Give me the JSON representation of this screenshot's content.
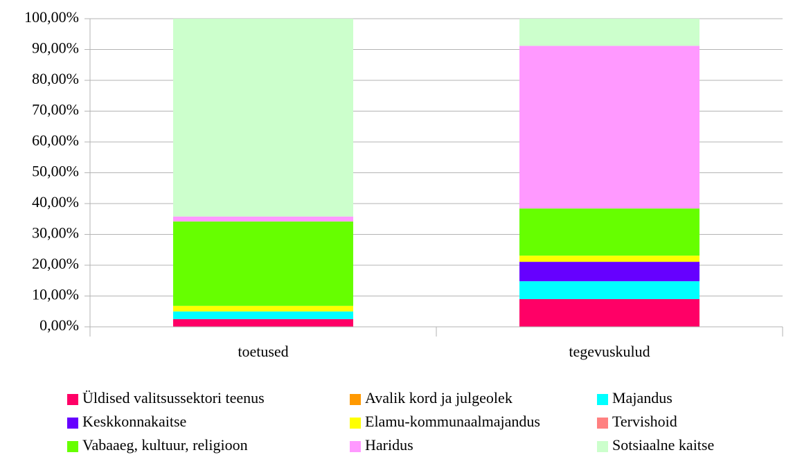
{
  "chart_data": {
    "type": "stacked_bar",
    "categories": [
      "toetused",
      "tegevuskulud"
    ],
    "series": [
      {
        "name": "Üldised valitsussektori teenus",
        "color": "#ff0066",
        "values": [
          2.5,
          9.0
        ]
      },
      {
        "name": "Avalik kord ja julgeolek",
        "color": "#ff9900",
        "values": [
          0,
          0
        ]
      },
      {
        "name": "Majandus",
        "color": "#00ffff",
        "values": [
          2.5,
          5.8
        ]
      },
      {
        "name": "Keskkonnakaitse",
        "color": "#6600ff",
        "values": [
          0,
          6.3
        ]
      },
      {
        "name": "Elamu-kommunaalmajandus",
        "color": "#ffff00",
        "values": [
          1.8,
          2.0
        ]
      },
      {
        "name": "Tervishoid",
        "color": "#ff8080",
        "values": [
          0,
          0
        ]
      },
      {
        "name": "Vabaaeg, kultuur, religioon",
        "color": "#66ff00",
        "values": [
          27.4,
          15.3
        ]
      },
      {
        "name": "Haridus",
        "color": "#ff99ff",
        "values": [
          1.6,
          52.8
        ]
      },
      {
        "name": "Sotsiaalne kaitse",
        "color": "#ccffcc",
        "values": [
          64.2,
          8.8
        ]
      }
    ],
    "ylim": [
      0,
      100
    ],
    "yticks": [
      {
        "value": 0,
        "label": "0,00%"
      },
      {
        "value": 10,
        "label": "10,00%"
      },
      {
        "value": 20,
        "label": "20,00%"
      },
      {
        "value": 30,
        "label": "30,00%"
      },
      {
        "value": 40,
        "label": "40,00%"
      },
      {
        "value": 50,
        "label": "50,00%"
      },
      {
        "value": 60,
        "label": "60,00%"
      },
      {
        "value": 70,
        "label": "70,00%"
      },
      {
        "value": 80,
        "label": "80,00%"
      },
      {
        "value": 90,
        "label": "90,00%"
      },
      {
        "value": 100,
        "label": "100,00%"
      }
    ],
    "grid": true,
    "legend": "bottom"
  }
}
